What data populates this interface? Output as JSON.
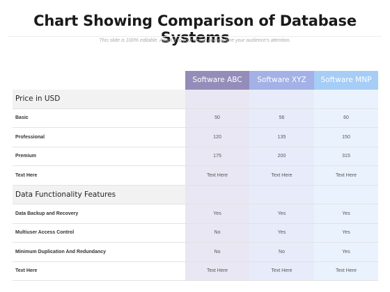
{
  "title": "Chart Showing Comparison of Database Systems",
  "subtitle": "This slide is 100% editable. Adapt it to your needs and capture your audience's attention.",
  "columns": [
    "Software ABC",
    "Software XYZ",
    "Software MNP"
  ],
  "rows": [
    {
      "type": "section",
      "label": "Price in USD",
      "values": [
        "",
        "",
        ""
      ]
    },
    {
      "type": "data",
      "label": "Basic",
      "values": [
        "50",
        "56",
        "60"
      ]
    },
    {
      "type": "data",
      "label": "Professional",
      "values": [
        "120",
        "135",
        "150"
      ]
    },
    {
      "type": "data",
      "label": "Premium",
      "values": [
        "175",
        "200",
        "315"
      ]
    },
    {
      "type": "data",
      "label": "Text Here",
      "values": [
        "Text Here",
        "Text Here",
        "Text Here"
      ]
    },
    {
      "type": "section",
      "label": "Data Functionality Features",
      "values": [
        "",
        "",
        ""
      ]
    },
    {
      "type": "data",
      "label": "Data Backup and Recovery",
      "values": [
        "Yes",
        "Yes",
        "Yes"
      ]
    },
    {
      "type": "data",
      "label": "Multiuser Access Control",
      "values": [
        "No",
        "Yes",
        "Yes"
      ]
    },
    {
      "type": "data",
      "label": "Minimum Duplication And Redundancy",
      "values": [
        "No",
        "No",
        "Yes"
      ]
    },
    {
      "type": "data",
      "label": "Text Here",
      "values": [
        "Text Here",
        "Text Here",
        "Text Here"
      ]
    }
  ]
}
